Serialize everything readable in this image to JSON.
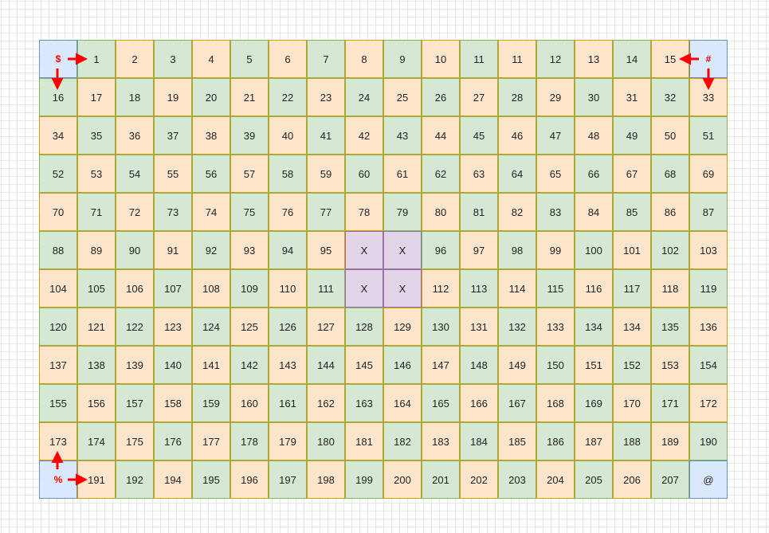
{
  "grid": {
    "rows": [
      [
        "$",
        "1",
        "2",
        "3",
        "4",
        "5",
        "6",
        "7",
        "8",
        "9",
        "10",
        "11",
        "11",
        "12",
        "13",
        "14",
        "15",
        "#"
      ],
      [
        "16",
        "17",
        "18",
        "19",
        "20",
        "21",
        "22",
        "23",
        "24",
        "25",
        "26",
        "27",
        "28",
        "29",
        "30",
        "31",
        "32",
        "33"
      ],
      [
        "34",
        "35",
        "36",
        "37",
        "38",
        "39",
        "40",
        "41",
        "42",
        "43",
        "44",
        "45",
        "46",
        "47",
        "48",
        "49",
        "50",
        "51"
      ],
      [
        "52",
        "53",
        "54",
        "55",
        "56",
        "57",
        "58",
        "59",
        "60",
        "61",
        "62",
        "63",
        "64",
        "65",
        "66",
        "67",
        "68",
        "69"
      ],
      [
        "70",
        "71",
        "72",
        "73",
        "74",
        "75",
        "76",
        "77",
        "78",
        "79",
        "80",
        "81",
        "82",
        "83",
        "84",
        "85",
        "86",
        "87"
      ],
      [
        "88",
        "89",
        "90",
        "91",
        "92",
        "93",
        "94",
        "95",
        "X",
        "X",
        "96",
        "97",
        "98",
        "99",
        "100",
        "101",
        "102",
        "103"
      ],
      [
        "104",
        "105",
        "106",
        "107",
        "108",
        "109",
        "110",
        "111",
        "X",
        "X",
        "112",
        "113",
        "114",
        "115",
        "116",
        "117",
        "118",
        "119"
      ],
      [
        "120",
        "121",
        "122",
        "123",
        "124",
        "125",
        "126",
        "127",
        "128",
        "129",
        "130",
        "131",
        "132",
        "133",
        "134",
        "134",
        "135",
        "136"
      ],
      [
        "137",
        "138",
        "139",
        "140",
        "141",
        "142",
        "143",
        "144",
        "145",
        "146",
        "147",
        "148",
        "149",
        "150",
        "151",
        "152",
        "153",
        "154"
      ],
      [
        "155",
        "156",
        "157",
        "158",
        "159",
        "160",
        "161",
        "162",
        "163",
        "164",
        "165",
        "166",
        "167",
        "168",
        "169",
        "170",
        "171",
        "172"
      ],
      [
        "173",
        "174",
        "175",
        "176",
        "177",
        "178",
        "179",
        "180",
        "181",
        "182",
        "183",
        "184",
        "185",
        "186",
        "187",
        "188",
        "189",
        "190"
      ],
      [
        "%",
        "191",
        "192",
        "194",
        "195",
        "196",
        "197",
        "198",
        "199",
        "200",
        "201",
        "202",
        "203",
        "204",
        "205",
        "206",
        "207",
        "@"
      ]
    ],
    "colors": [
      [
        "blue",
        "green",
        "orange",
        "green",
        "orange",
        "green",
        "orange",
        "green",
        "orange",
        "green",
        "orange",
        "green",
        "orange",
        "green",
        "orange",
        "green",
        "orange",
        "blue"
      ],
      [
        "green",
        "orange",
        "green",
        "orange",
        "green",
        "orange",
        "green",
        "orange",
        "green",
        "orange",
        "green",
        "orange",
        "green",
        "orange",
        "green",
        "orange",
        "green",
        "orange"
      ],
      [
        "orange",
        "green",
        "orange",
        "green",
        "orange",
        "green",
        "orange",
        "green",
        "orange",
        "green",
        "orange",
        "green",
        "orange",
        "green",
        "orange",
        "green",
        "orange",
        "green"
      ],
      [
        "green",
        "orange",
        "green",
        "orange",
        "green",
        "orange",
        "green",
        "orange",
        "green",
        "orange",
        "green",
        "orange",
        "green",
        "orange",
        "green",
        "orange",
        "green",
        "orange"
      ],
      [
        "orange",
        "green",
        "orange",
        "green",
        "orange",
        "green",
        "orange",
        "green",
        "orange",
        "green",
        "orange",
        "green",
        "orange",
        "green",
        "orange",
        "green",
        "orange",
        "green"
      ],
      [
        "green",
        "orange",
        "green",
        "orange",
        "green",
        "orange",
        "green",
        "orange",
        "purple",
        "purple",
        "green",
        "orange",
        "green",
        "orange",
        "green",
        "orange",
        "green",
        "orange"
      ],
      [
        "orange",
        "green",
        "orange",
        "green",
        "orange",
        "green",
        "orange",
        "green",
        "purple",
        "purple",
        "orange",
        "green",
        "orange",
        "green",
        "orange",
        "green",
        "orange",
        "green"
      ],
      [
        "green",
        "orange",
        "green",
        "orange",
        "green",
        "orange",
        "green",
        "orange",
        "green",
        "orange",
        "green",
        "orange",
        "green",
        "orange",
        "green",
        "orange",
        "green",
        "orange"
      ],
      [
        "orange",
        "green",
        "orange",
        "green",
        "orange",
        "green",
        "orange",
        "green",
        "orange",
        "green",
        "orange",
        "green",
        "orange",
        "green",
        "orange",
        "green",
        "orange",
        "green"
      ],
      [
        "green",
        "orange",
        "green",
        "orange",
        "green",
        "orange",
        "green",
        "orange",
        "green",
        "orange",
        "green",
        "orange",
        "green",
        "orange",
        "green",
        "orange",
        "green",
        "orange"
      ],
      [
        "orange",
        "green",
        "orange",
        "green",
        "orange",
        "green",
        "orange",
        "green",
        "orange",
        "green",
        "orange",
        "green",
        "orange",
        "green",
        "orange",
        "green",
        "orange",
        "green"
      ],
      [
        "blue",
        "orange",
        "green",
        "orange",
        "green",
        "orange",
        "green",
        "orange",
        "green",
        "orange",
        "green",
        "orange",
        "green",
        "orange",
        "green",
        "orange",
        "green",
        "blue"
      ]
    ],
    "markers": [
      "$",
      "#",
      "%"
    ]
  },
  "palette": {
    "orange_fill": "#ffe5cc",
    "green_fill": "#d5e8d4",
    "blue_fill": "#dae8fc",
    "purple_fill": "#e1d5e7",
    "arrow_color": "#ff0000"
  },
  "arrows": [
    {
      "name": "arrow-dollar-to-1",
      "direction": "right"
    },
    {
      "name": "arrow-dollar-down",
      "direction": "down"
    },
    {
      "name": "arrow-hash-to-15",
      "direction": "left"
    },
    {
      "name": "arrow-hash-down",
      "direction": "down"
    },
    {
      "name": "arrow-percent-up",
      "direction": "up"
    },
    {
      "name": "arrow-percent-to-191",
      "direction": "right"
    }
  ]
}
